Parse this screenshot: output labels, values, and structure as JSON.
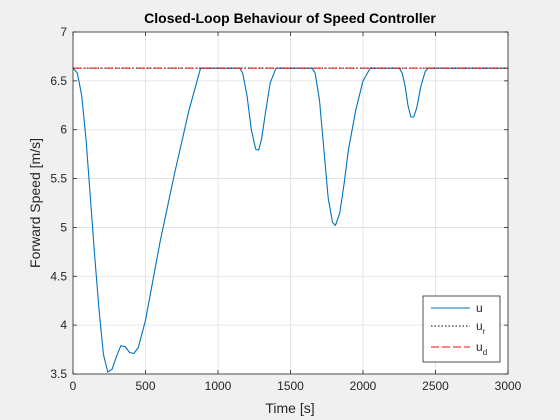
{
  "chart_data": {
    "type": "line",
    "title": "Closed-Loop Behaviour of Speed Controller",
    "xlabel": "Time [s]",
    "ylabel": "Forward Speed [m/s]",
    "xlim": [
      0,
      3000
    ],
    "ylim": [
      3.5,
      7
    ],
    "xticks": [
      "0",
      "500",
      "1000",
      "1500",
      "2000",
      "2500",
      "3000"
    ],
    "yticks": [
      "3.5",
      "4",
      "4.5",
      "5",
      "5.5",
      "6",
      "6.5",
      "7"
    ],
    "grid": true,
    "legend_position": "bottom-right",
    "series": [
      {
        "name": "u",
        "style": "solid",
        "color": "#0072BD",
        "x": [
          0,
          30,
          60,
          90,
          120,
          150,
          180,
          210,
          240,
          270,
          300,
          330,
          360,
          390,
          420,
          450,
          500,
          600,
          700,
          800,
          880,
          900,
          1000,
          1100,
          1150,
          1170,
          1200,
          1230,
          1260,
          1280,
          1300,
          1330,
          1360,
          1400,
          1430,
          1450,
          1500,
          1600,
          1650,
          1670,
          1700,
          1730,
          1760,
          1790,
          1810,
          1840,
          1870,
          1900,
          1950,
          2000,
          2050,
          2100,
          2200,
          2250,
          2270,
          2290,
          2310,
          2330,
          2350,
          2370,
          2400,
          2430,
          2450,
          2500,
          2600,
          2700,
          2800,
          2900,
          3000
        ],
        "y": [
          6.63,
          6.58,
          6.35,
          5.9,
          5.3,
          4.7,
          4.15,
          3.7,
          3.52,
          3.55,
          3.68,
          3.79,
          3.78,
          3.72,
          3.71,
          3.77,
          4.05,
          4.85,
          5.55,
          6.2,
          6.63,
          6.63,
          6.63,
          6.63,
          6.63,
          6.58,
          6.35,
          6.0,
          5.8,
          5.79,
          5.9,
          6.2,
          6.48,
          6.63,
          6.63,
          6.63,
          6.63,
          6.63,
          6.63,
          6.58,
          6.3,
          5.8,
          5.3,
          5.05,
          5.02,
          5.15,
          5.45,
          5.8,
          6.2,
          6.5,
          6.63,
          6.63,
          6.63,
          6.63,
          6.58,
          6.45,
          6.25,
          6.13,
          6.13,
          6.22,
          6.45,
          6.6,
          6.63,
          6.63,
          6.63,
          6.63,
          6.63,
          6.63,
          6.63
        ]
      },
      {
        "name": "u",
        "subscript": "r",
        "style": "dotted",
        "color": "#000000",
        "x": [
          0,
          3000
        ],
        "y": [
          6.63,
          6.63
        ]
      },
      {
        "name": "u",
        "subscript": "d",
        "style": "dashdot",
        "color": "#FF0000",
        "x": [
          0,
          3000
        ],
        "y": [
          6.63,
          6.63
        ]
      }
    ]
  }
}
